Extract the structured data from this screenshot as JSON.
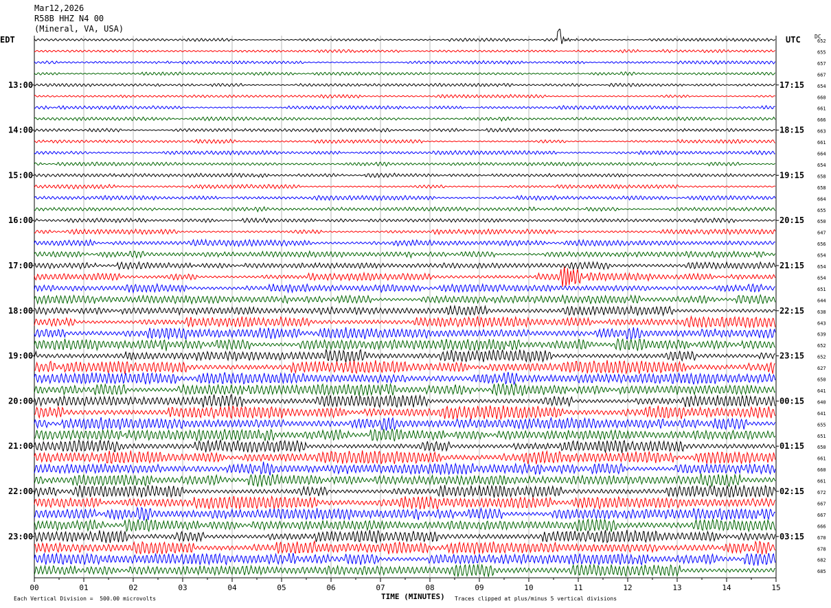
{
  "header": {
    "date": "Mar12,2026",
    "station": "R58B HHZ N4 00",
    "location": "(Mineral, VA, USA)"
  },
  "left_zone": "EDT",
  "right_zone": "UTC",
  "dc_label": "DC",
  "footer": {
    "scale": "Each Vertical Division =  500.00 microvolts",
    "clip": "Traces clipped at plus/minus 5 vertical divisions",
    "xaxis_title": "TIME (MINUTES)"
  },
  "chart_data": {
    "type": "line",
    "title": "",
    "xlabel": "TIME (MINUTES)",
    "xlim": [
      0,
      15
    ],
    "x_ticks": [
      "00",
      "01",
      "02",
      "03",
      "04",
      "05",
      "06",
      "07",
      "08",
      "09",
      "10",
      "11",
      "12",
      "13",
      "14",
      "15"
    ],
    "trace_colors": [
      "#000000",
      "#ff0000",
      "#0000ff",
      "#006400"
    ],
    "trace_count": 48,
    "left_hour_labels": [
      "13:00",
      "14:00",
      "15:00",
      "16:00",
      "17:00",
      "18:00",
      "19:00",
      "20:00",
      "21:00",
      "22:00",
      "23:00"
    ],
    "right_hour_labels": [
      "17:15",
      "18:15",
      "19:15",
      "20:15",
      "21:15",
      "22:15",
      "23:15",
      "00:15",
      "01:15",
      "02:15",
      "03:15"
    ],
    "dc_offsets": [
      "652",
      "655",
      "657",
      "667",
      "654",
      "660",
      "661",
      "666",
      "663",
      "661",
      "664",
      "654",
      "658",
      "658",
      "664",
      "655",
      "650",
      "647",
      "656",
      "654",
      "654",
      "654",
      "651",
      "644",
      "638",
      "643",
      "639",
      "652",
      "652",
      "627",
      "650",
      "641",
      "640",
      "641",
      "655",
      "651",
      "650",
      "661",
      "660",
      "661",
      "672",
      "667",
      "667",
      "666",
      "670",
      "678",
      "682",
      "685"
    ],
    "amplitude_trend": "increasing noise from about 17:00 EDT onward",
    "events": [
      {
        "trace": 0,
        "minute": 10.6,
        "note": "spike"
      },
      {
        "trace": 21,
        "minute": 10.8,
        "note": "burst"
      }
    ]
  }
}
